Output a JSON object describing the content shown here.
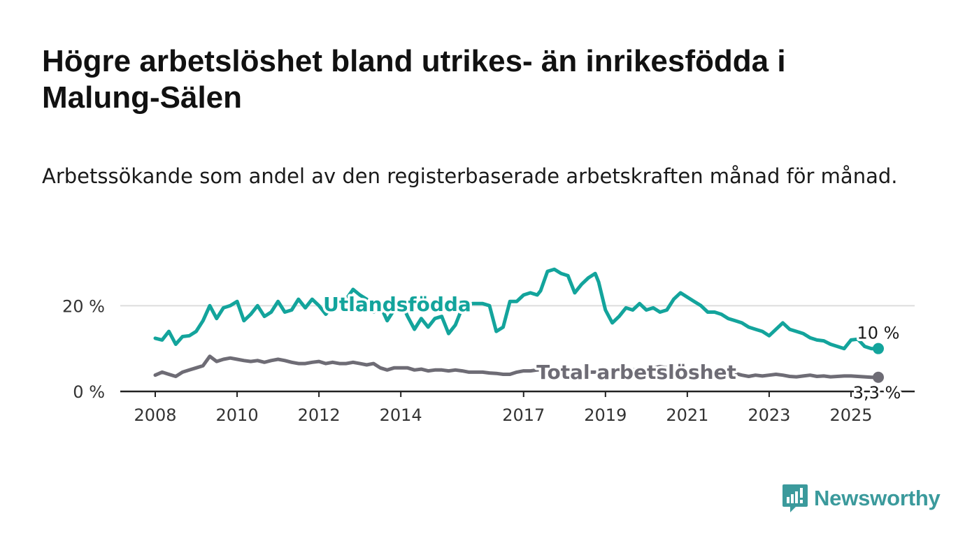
{
  "title": "Högre arbetslöshet bland utrikes- än inrikesfödda i Malung-Sälen",
  "subtitle": "Arbetssökande som andel av den registerbaserade arbetskraften månad för månad.",
  "brand": {
    "name": "Newsworthy",
    "logo_icon": "bar-chart-speech-bubble-icon"
  },
  "colors": {
    "foreign_born": "#13a49c",
    "total": "#6e6c75",
    "grid": "#dddddd",
    "axis": "#222222",
    "brand": "#3b9a9c"
  },
  "chart_data": {
    "type": "line",
    "title": "Högre arbetslöshet bland utrikes- än inrikesfödda i Malung-Sälen",
    "subtitle": "Arbetssökande som andel av den registerbaserade arbetskraften månad för månad.",
    "xlabel": "",
    "ylabel": "",
    "xlim": [
      "2008-01",
      "2025-09"
    ],
    "ylim": [
      0,
      30
    ],
    "x_ticks": [
      "2008",
      "2010",
      "2012",
      "2014",
      "2017",
      "2019",
      "2021",
      "2023",
      "2025"
    ],
    "y_ticks": [
      "0 %",
      "20 %"
    ],
    "grid": "horizontal",
    "legend": "none (inline series labels)",
    "series": [
      {
        "name": "Utlandsfödda",
        "end_label": "10 %",
        "points": [
          [
            "2008-01",
            12.4
          ],
          [
            "2008-03",
            12.0
          ],
          [
            "2008-05",
            14.0
          ],
          [
            "2008-07",
            11.0
          ],
          [
            "2008-09",
            12.8
          ],
          [
            "2008-11",
            13.0
          ],
          [
            "2009-01",
            14.0
          ],
          [
            "2009-03",
            16.5
          ],
          [
            "2009-05",
            20.0
          ],
          [
            "2009-07",
            17.0
          ],
          [
            "2009-09",
            19.5
          ],
          [
            "2009-11",
            20.0
          ],
          [
            "2010-01",
            21.0
          ],
          [
            "2010-03",
            16.5
          ],
          [
            "2010-05",
            18.0
          ],
          [
            "2010-07",
            20.0
          ],
          [
            "2010-09",
            17.5
          ],
          [
            "2010-11",
            18.5
          ],
          [
            "2011-01",
            21.0
          ],
          [
            "2011-03",
            18.5
          ],
          [
            "2011-05",
            19.0
          ],
          [
            "2011-07",
            21.5
          ],
          [
            "2011-09",
            19.5
          ],
          [
            "2011-11",
            21.5
          ],
          [
            "2012-01",
            20.0
          ],
          [
            "2012-03",
            18.0
          ],
          [
            "2012-05",
            20.0
          ],
          [
            "2012-07",
            19.5
          ],
          [
            "2012-09",
            21.5
          ],
          [
            "2012-11",
            23.8
          ],
          [
            "2013-01",
            22.5
          ],
          [
            "2013-03",
            21.5
          ],
          [
            "2013-05",
            18.5
          ],
          [
            "2013-07",
            20.0
          ],
          [
            "2013-09",
            16.5
          ],
          [
            "2013-11",
            19.0
          ],
          [
            "2014-01",
            21.0
          ],
          [
            "2014-03",
            17.5
          ],
          [
            "2014-05",
            14.5
          ],
          [
            "2014-07",
            17.0
          ],
          [
            "2014-09",
            15.0
          ],
          [
            "2014-11",
            17.0
          ],
          [
            "2015-01",
            17.5
          ],
          [
            "2015-03",
            13.5
          ],
          [
            "2015-05",
            15.5
          ],
          [
            "2015-07",
            19.5
          ],
          [
            "2015-10",
            20.5
          ],
          [
            "2016-01",
            20.5
          ],
          [
            "2016-03",
            20.0
          ],
          [
            "2016-05",
            14.0
          ],
          [
            "2016-07",
            15.0
          ],
          [
            "2016-09",
            21.0
          ],
          [
            "2016-11",
            21.0
          ],
          [
            "2017-01",
            22.5
          ],
          [
            "2017-03",
            23.0
          ],
          [
            "2017-05",
            22.5
          ],
          [
            "2017-06",
            23.5
          ],
          [
            "2017-08",
            28.0
          ],
          [
            "2017-10",
            28.5
          ],
          [
            "2017-12",
            27.5
          ],
          [
            "2018-02",
            27.0
          ],
          [
            "2018-04",
            23.0
          ],
          [
            "2018-06",
            25.0
          ],
          [
            "2018-08",
            26.5
          ],
          [
            "2018-10",
            27.5
          ],
          [
            "2018-11",
            25.5
          ],
          [
            "2019-01",
            19.0
          ],
          [
            "2019-03",
            16.0
          ],
          [
            "2019-05",
            17.5
          ],
          [
            "2019-07",
            19.5
          ],
          [
            "2019-09",
            19.0
          ],
          [
            "2019-11",
            20.5
          ],
          [
            "2020-01",
            19.0
          ],
          [
            "2020-03",
            19.5
          ],
          [
            "2020-05",
            18.5
          ],
          [
            "2020-07",
            19.0
          ],
          [
            "2020-09",
            21.5
          ],
          [
            "2020-11",
            23.0
          ],
          [
            "2021-01",
            22.0
          ],
          [
            "2021-03",
            21.0
          ],
          [
            "2021-05",
            20.0
          ],
          [
            "2021-07",
            18.5
          ],
          [
            "2021-09",
            18.5
          ],
          [
            "2021-11",
            18.0
          ],
          [
            "2022-01",
            17.0
          ],
          [
            "2022-03",
            16.5
          ],
          [
            "2022-05",
            16.0
          ],
          [
            "2022-07",
            15.0
          ],
          [
            "2022-09",
            14.5
          ],
          [
            "2022-11",
            14.0
          ],
          [
            "2023-01",
            13.0
          ],
          [
            "2023-03",
            14.5
          ],
          [
            "2023-05",
            16.0
          ],
          [
            "2023-07",
            14.5
          ],
          [
            "2023-09",
            14.0
          ],
          [
            "2023-11",
            13.5
          ],
          [
            "2024-01",
            12.5
          ],
          [
            "2024-03",
            12.0
          ],
          [
            "2024-05",
            11.8
          ],
          [
            "2024-07",
            11.0
          ],
          [
            "2024-09",
            10.5
          ],
          [
            "2024-11",
            10.0
          ],
          [
            "2025-01",
            12.0
          ],
          [
            "2025-03",
            12.2
          ],
          [
            "2025-05",
            10.5
          ],
          [
            "2025-07",
            10.0
          ],
          [
            "2025-09",
            10.0
          ]
        ]
      },
      {
        "name": "Total arbetslöshet",
        "end_label": "3,3 %",
        "points": [
          [
            "2008-01",
            3.8
          ],
          [
            "2008-03",
            4.5
          ],
          [
            "2008-05",
            4.0
          ],
          [
            "2008-07",
            3.5
          ],
          [
            "2008-09",
            4.5
          ],
          [
            "2008-11",
            5.0
          ],
          [
            "2009-01",
            5.5
          ],
          [
            "2009-03",
            6.0
          ],
          [
            "2009-05",
            8.2
          ],
          [
            "2009-07",
            7.0
          ],
          [
            "2009-09",
            7.5
          ],
          [
            "2009-11",
            7.8
          ],
          [
            "2010-01",
            7.5
          ],
          [
            "2010-03",
            7.2
          ],
          [
            "2010-05",
            7.0
          ],
          [
            "2010-07",
            7.2
          ],
          [
            "2010-09",
            6.8
          ],
          [
            "2010-11",
            7.2
          ],
          [
            "2011-01",
            7.5
          ],
          [
            "2011-03",
            7.2
          ],
          [
            "2011-05",
            6.8
          ],
          [
            "2011-07",
            6.5
          ],
          [
            "2011-09",
            6.5
          ],
          [
            "2011-11",
            6.8
          ],
          [
            "2012-01",
            7.0
          ],
          [
            "2012-03",
            6.5
          ],
          [
            "2012-05",
            6.8
          ],
          [
            "2012-07",
            6.5
          ],
          [
            "2012-09",
            6.5
          ],
          [
            "2012-11",
            6.8
          ],
          [
            "2013-01",
            6.5
          ],
          [
            "2013-03",
            6.2
          ],
          [
            "2013-05",
            6.5
          ],
          [
            "2013-07",
            5.5
          ],
          [
            "2013-09",
            5.0
          ],
          [
            "2013-11",
            5.5
          ],
          [
            "2014-01",
            5.5
          ],
          [
            "2014-03",
            5.5
          ],
          [
            "2014-05",
            5.0
          ],
          [
            "2014-07",
            5.2
          ],
          [
            "2014-09",
            4.8
          ],
          [
            "2014-11",
            5.0
          ],
          [
            "2015-01",
            5.0
          ],
          [
            "2015-03",
            4.8
          ],
          [
            "2015-05",
            5.0
          ],
          [
            "2015-07",
            4.8
          ],
          [
            "2015-09",
            4.5
          ],
          [
            "2015-11",
            4.5
          ],
          [
            "2016-01",
            4.5
          ],
          [
            "2016-03",
            4.3
          ],
          [
            "2016-05",
            4.2
          ],
          [
            "2016-07",
            4.0
          ],
          [
            "2016-09",
            4.0
          ],
          [
            "2016-11",
            4.5
          ],
          [
            "2017-01",
            4.8
          ],
          [
            "2017-03",
            4.8
          ],
          [
            "2017-05",
            5.0
          ],
          [
            "2017-07",
            5.0
          ],
          [
            "2017-09",
            5.0
          ],
          [
            "2017-11",
            4.8
          ],
          [
            "2018-01",
            4.8
          ],
          [
            "2018-03",
            4.5
          ],
          [
            "2018-05",
            4.5
          ],
          [
            "2018-07",
            4.5
          ],
          [
            "2018-09",
            4.5
          ],
          [
            "2018-11",
            4.5
          ],
          [
            "2019-01",
            4.5
          ],
          [
            "2019-03",
            4.5
          ],
          [
            "2019-05",
            4.8
          ],
          [
            "2019-07",
            5.0
          ],
          [
            "2019-09",
            5.0
          ],
          [
            "2019-11",
            5.2
          ],
          [
            "2020-01",
            5.2
          ],
          [
            "2020-03",
            5.5
          ],
          [
            "2020-05",
            5.8
          ],
          [
            "2020-07",
            5.5
          ],
          [
            "2020-09",
            5.2
          ],
          [
            "2020-11",
            5.0
          ],
          [
            "2021-01",
            5.0
          ],
          [
            "2021-03",
            4.8
          ],
          [
            "2021-05",
            4.8
          ],
          [
            "2021-07",
            4.5
          ],
          [
            "2021-09",
            4.3
          ],
          [
            "2021-11",
            4.2
          ],
          [
            "2022-01",
            4.0
          ],
          [
            "2022-03",
            4.2
          ],
          [
            "2022-05",
            3.8
          ],
          [
            "2022-07",
            3.5
          ],
          [
            "2022-09",
            3.8
          ],
          [
            "2022-11",
            3.6
          ],
          [
            "2023-01",
            3.8
          ],
          [
            "2023-03",
            4.0
          ],
          [
            "2023-05",
            3.8
          ],
          [
            "2023-07",
            3.5
          ],
          [
            "2023-09",
            3.4
          ],
          [
            "2023-11",
            3.6
          ],
          [
            "2024-01",
            3.8
          ],
          [
            "2024-03",
            3.5
          ],
          [
            "2024-05",
            3.6
          ],
          [
            "2024-07",
            3.4
          ],
          [
            "2024-09",
            3.5
          ],
          [
            "2024-11",
            3.6
          ],
          [
            "2025-01",
            3.6
          ],
          [
            "2025-03",
            3.5
          ],
          [
            "2025-05",
            3.4
          ],
          [
            "2025-07",
            3.3
          ],
          [
            "2025-09",
            3.3
          ]
        ]
      }
    ]
  }
}
